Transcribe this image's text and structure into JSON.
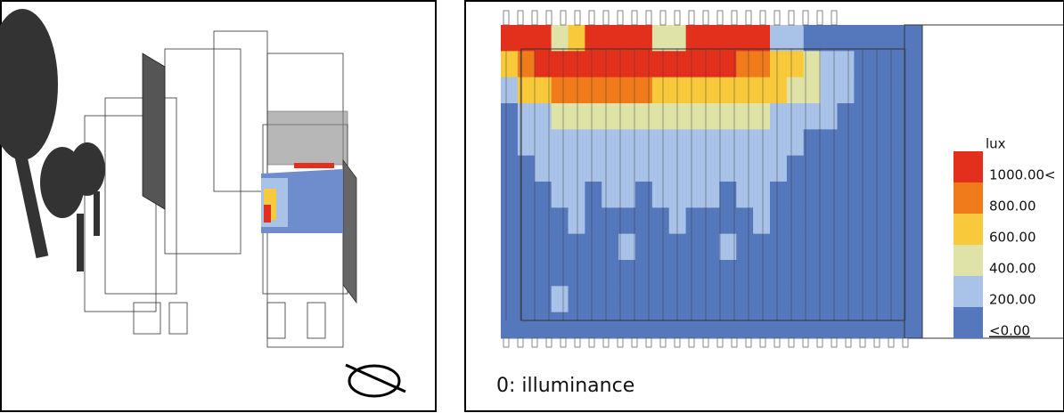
{
  "right_panel": {
    "legend": {
      "title": "lux",
      "items": [
        {
          "label": "1000.00<",
          "color": "#e3301c"
        },
        {
          "label": "800.00",
          "color": "#ef7b1a"
        },
        {
          "label": "600.00",
          "color": "#f7c93b"
        },
        {
          "label": "400.00",
          "color": "#dfe3a8"
        },
        {
          "label": "200.00",
          "color": "#a9c2e8"
        },
        {
          "label": "<0.00",
          "color": "#5577bb"
        }
      ]
    },
    "caption": "0: illuminance",
    "heatmap": {
      "rows": [
        [
          0,
          0,
          0,
          3,
          2,
          0,
          0,
          0,
          0,
          3,
          3,
          0,
          0,
          0,
          0,
          0,
          4,
          4,
          5,
          5,
          5,
          5,
          5,
          5
        ],
        [
          2,
          1,
          0,
          0,
          0,
          0,
          0,
          0,
          0,
          0,
          0,
          0,
          0,
          0,
          1,
          1,
          2,
          2,
          3,
          4,
          4,
          5,
          5,
          5
        ],
        [
          4,
          2,
          2,
          1,
          1,
          1,
          1,
          1,
          1,
          2,
          2,
          2,
          2,
          2,
          2,
          2,
          2,
          3,
          3,
          4,
          4,
          5,
          5,
          5
        ],
        [
          5,
          4,
          4,
          3,
          3,
          3,
          3,
          3,
          3,
          3,
          3,
          3,
          3,
          3,
          3,
          3,
          4,
          4,
          4,
          4,
          5,
          5,
          5,
          5
        ],
        [
          5,
          4,
          4,
          4,
          4,
          4,
          4,
          4,
          4,
          4,
          4,
          4,
          4,
          4,
          4,
          4,
          4,
          4,
          5,
          5,
          5,
          5,
          5,
          5
        ],
        [
          5,
          5,
          4,
          4,
          4,
          4,
          4,
          4,
          4,
          4,
          4,
          4,
          4,
          4,
          4,
          4,
          4,
          5,
          5,
          5,
          5,
          5,
          5,
          5
        ],
        [
          5,
          5,
          5,
          4,
          4,
          5,
          4,
          4,
          5,
          4,
          4,
          4,
          4,
          5,
          4,
          4,
          5,
          5,
          5,
          5,
          5,
          5,
          5,
          5
        ],
        [
          5,
          5,
          5,
          5,
          4,
          5,
          5,
          5,
          5,
          5,
          4,
          5,
          5,
          5,
          5,
          4,
          5,
          5,
          5,
          5,
          5,
          5,
          5,
          5
        ],
        [
          5,
          5,
          5,
          5,
          5,
          5,
          5,
          4,
          5,
          5,
          5,
          5,
          5,
          4,
          5,
          5,
          5,
          5,
          5,
          5,
          5,
          5,
          5,
          5
        ],
        [
          5,
          5,
          5,
          5,
          5,
          5,
          5,
          5,
          5,
          5,
          5,
          5,
          5,
          5,
          5,
          5,
          5,
          5,
          5,
          5,
          5,
          5,
          5,
          5
        ],
        [
          5,
          5,
          5,
          4,
          5,
          5,
          5,
          5,
          5,
          5,
          5,
          5,
          5,
          5,
          5,
          5,
          5,
          5,
          5,
          5,
          5,
          5,
          5,
          5
        ],
        [
          5,
          5,
          5,
          5,
          5,
          5,
          5,
          5,
          5,
          5,
          5,
          5,
          5,
          5,
          5,
          5,
          5,
          5,
          5,
          5,
          5,
          5,
          5,
          5
        ]
      ]
    }
  }
}
